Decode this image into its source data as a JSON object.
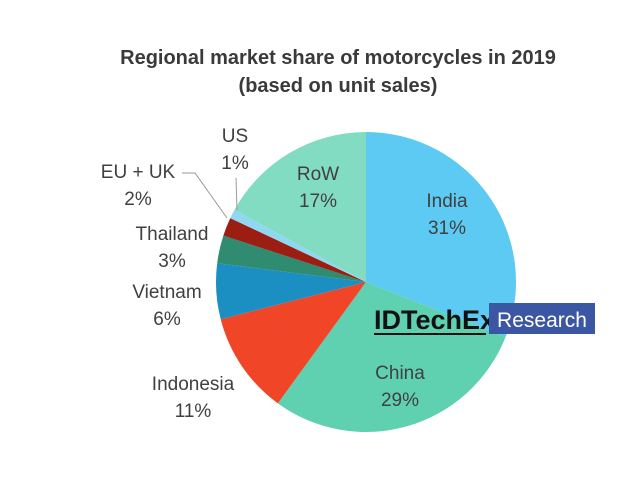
{
  "chart_data": {
    "type": "pie",
    "title": "Regional market share of motorcycles in 2019",
    "subtitle": "(based on unit sales)",
    "categories": [
      "India",
      "China",
      "Indonesia",
      "Vietnam",
      "Thailand",
      "EU + UK",
      "US",
      "RoW"
    ],
    "values": [
      31,
      29,
      11,
      6,
      3,
      2,
      1,
      17
    ],
    "value_labels": [
      "31%",
      "29%",
      "11%",
      "6%",
      "3%",
      "2%",
      "1%",
      "17%"
    ],
    "colors": [
      "#5ccaf2",
      "#5fd1b1",
      "#f04527",
      "#1b8fc2",
      "#2f8c70",
      "#9c1e12",
      "#8fd8f2",
      "#82dcc2"
    ],
    "watermark": {
      "brand": "IDTechEx",
      "suffix": "Research"
    }
  }
}
